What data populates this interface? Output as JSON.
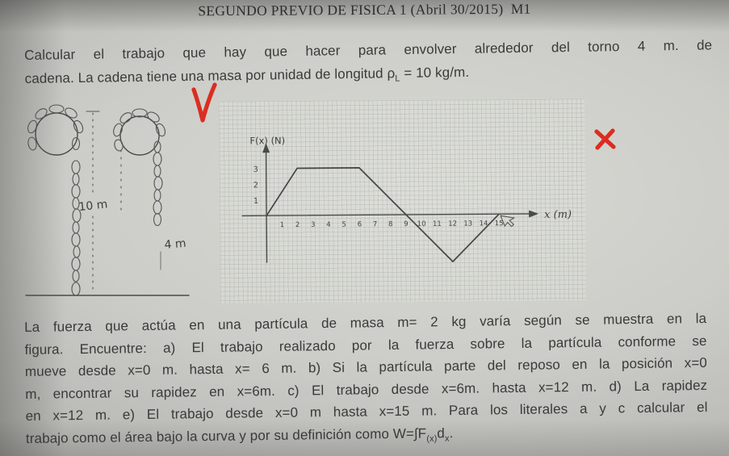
{
  "title": "SEGUNDO PREVIO DE FISICA 1 (Abril 30/2015)  M1",
  "problem1": {
    "line1": "Calcular el trabajo que hay que hacer para envolver alrededor del torno 4 m. de",
    "line2": {
      "pre": "cadena.  La cadena tiene una masa por unidad de longitud ρ",
      "sub": "L",
      "post": " = 10 kg/m."
    }
  },
  "diagram": {
    "long_chain_label": "10 m",
    "short_chain_label": "4 m"
  },
  "graph": {
    "ylabel": "F(x) (N)",
    "xlabel": "x (m)"
  },
  "problem2": {
    "line1": "La fuerza que actúa en una partícula de masa m= 2 kg varía según se muestra en la",
    "line2": "figura. Encuentre: a) El trabajo realizado por la fuerza sobre la partícula conforme se",
    "line3": "mueve desde x=0 m. hasta x= 6 m. b) Si la partícula parte del reposo en la posición x=0",
    "line4": "m, encontrar su rapidez en x=6m. c) El trabajo desde x=6m. hasta x=12 m. d) La rapidez",
    "line5": "en x=12 m. e) El trabajo desde x=0 m hasta x=15 m.  Para los literales a y c calcular el",
    "line6": {
      "pre": "trabajo como el área bajo la curva y por su definición como W=∫F",
      "sub1": "(x)",
      "mid": "d",
      "sub2": "x",
      "post": "."
    }
  },
  "chart_data": {
    "type": "line",
    "title": "",
    "xlabel": "x (m)",
    "ylabel": "F(x) (N)",
    "x": [
      0,
      2,
      6,
      9,
      12,
      15
    ],
    "y": [
      0,
      3,
      3,
      0,
      -3,
      0
    ],
    "xticks": [
      1,
      2,
      3,
      4,
      5,
      6,
      7,
      8,
      9,
      10,
      11,
      12,
      13,
      14,
      15
    ],
    "yticks": [
      1,
      2,
      3
    ],
    "xlim": [
      0,
      16
    ],
    "ylim": [
      -4,
      4
    ],
    "grid": true,
    "legend": false
  }
}
